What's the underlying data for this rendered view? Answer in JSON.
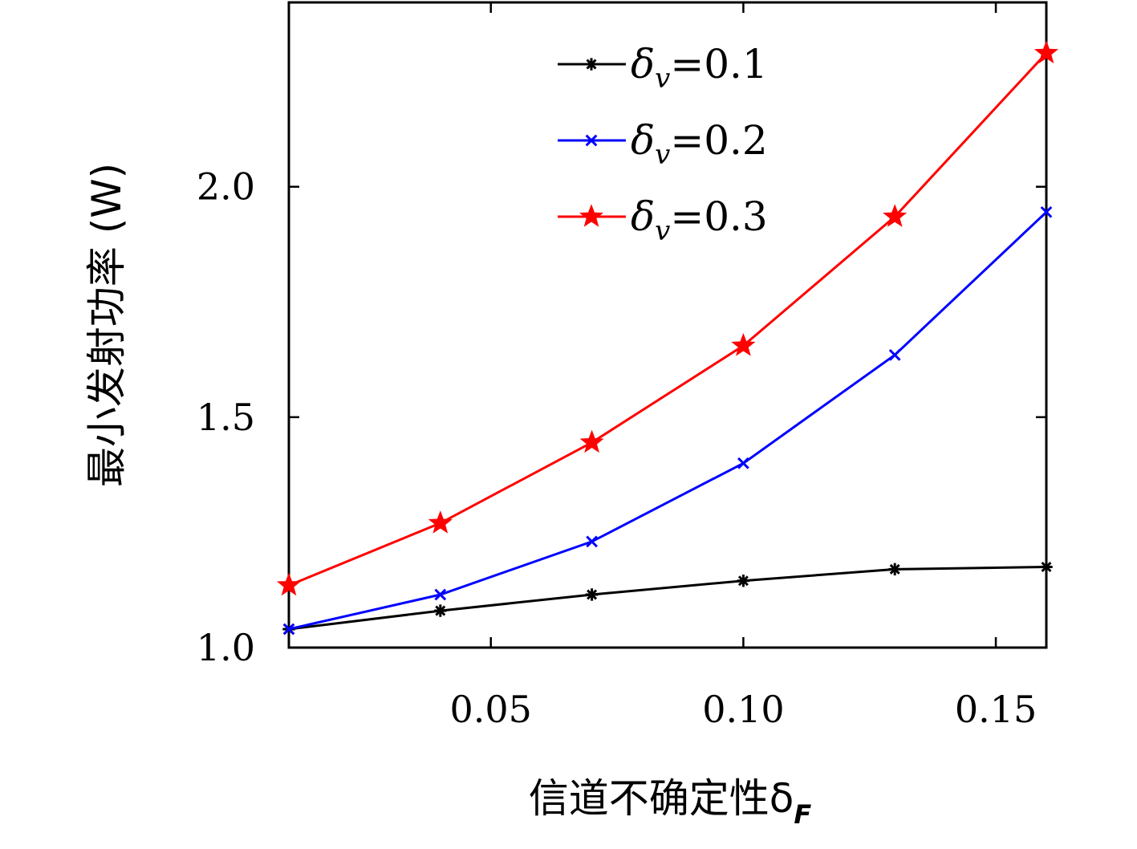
{
  "chart_data": {
    "type": "line",
    "title": "",
    "xlabel": "信道不确定性δ",
    "xlabel_subscript": "F",
    "ylabel": "最小发射功率 (W)",
    "xlim": [
      0.01,
      0.16
    ],
    "ylim": [
      1.0,
      2.4
    ],
    "xticks": [
      0.05,
      0.1,
      0.15
    ],
    "xtick_labels": [
      "0.05",
      "0.10",
      "0.15"
    ],
    "yticks": [
      1.0,
      1.5,
      2.0
    ],
    "ytick_labels": [
      "1.0",
      "1.5",
      "2.0"
    ],
    "grid": false,
    "legend_position": "top-center",
    "x": [
      0.01,
      0.04,
      0.07,
      0.1,
      0.13,
      0.16
    ],
    "series": [
      {
        "name": "δv=0.1",
        "legend_symbol": "δ",
        "legend_subscript": "v",
        "legend_value": "=0.1",
        "color": "#000000",
        "marker": "asterisk",
        "values": [
          1.04,
          1.08,
          1.115,
          1.145,
          1.17,
          1.175
        ]
      },
      {
        "name": "δv=0.2",
        "legend_symbol": "δ",
        "legend_subscript": "v",
        "legend_value": "=0.2",
        "color": "#0000ff",
        "marker": "x",
        "values": [
          1.04,
          1.115,
          1.23,
          1.4,
          1.635,
          1.945
        ]
      },
      {
        "name": "δv=0.3",
        "legend_symbol": "δ",
        "legend_subscript": "v",
        "legend_value": "=0.3",
        "color": "#ff0000",
        "marker": "star",
        "values": [
          1.135,
          1.27,
          1.445,
          1.655,
          1.935,
          2.29
        ]
      }
    ]
  }
}
